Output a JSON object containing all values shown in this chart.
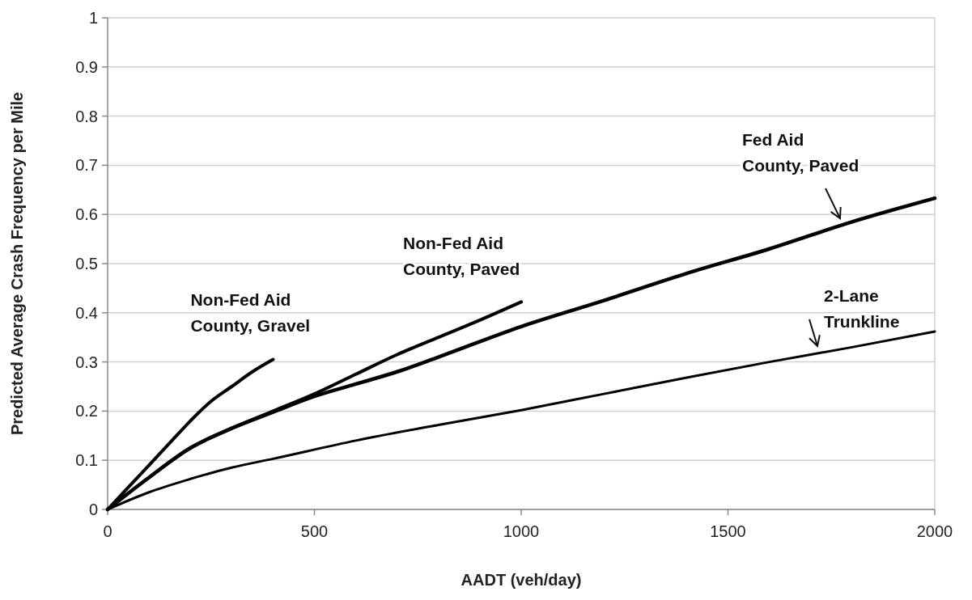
{
  "chart_data": {
    "type": "line",
    "xlabel": "AADT (veh/day)",
    "ylabel": "Predicted Average Crash Frequency per Mile",
    "xlim": [
      0,
      2000
    ],
    "xticks": [
      0,
      500,
      1000,
      1500,
      2000
    ],
    "ylim": [
      0,
      1
    ],
    "yticks": [
      0,
      0.1,
      0.2,
      0.3,
      0.4,
      0.5,
      0.6,
      0.7,
      0.8,
      0.9,
      1
    ],
    "grid": "y",
    "marker": "none",
    "line_style": "solid",
    "series": [
      {
        "name": "Non-Fed Aid\nCounty, Gravel",
        "color": "#000000",
        "x": [
          0,
          50,
          100,
          150,
          200,
          250,
          300,
          350,
          400
        ],
        "values": [
          0,
          0.045,
          0.09,
          0.135,
          0.18,
          0.22,
          0.25,
          0.28,
          0.305
        ]
      },
      {
        "name": "Non-Fed Aid\nCounty, Paved",
        "color": "#000000",
        "x": [
          0,
          100,
          200,
          300,
          400,
          500,
          600,
          700,
          800,
          900,
          1000
        ],
        "values": [
          0,
          0.065,
          0.125,
          0.165,
          0.2,
          0.235,
          0.275,
          0.315,
          0.35,
          0.385,
          0.422
        ]
      },
      {
        "name": "Fed Aid\nCounty, Paved",
        "color": "#000000",
        "x": [
          0,
          100,
          200,
          300,
          400,
          500,
          600,
          700,
          800,
          1000,
          1200,
          1400,
          1600,
          1800,
          2000
        ],
        "values": [
          0,
          0.065,
          0.125,
          0.165,
          0.198,
          0.23,
          0.255,
          0.28,
          0.31,
          0.372,
          0.425,
          0.48,
          0.53,
          0.585,
          0.633
        ]
      },
      {
        "name": "2-Lane\nTrunkline",
        "color": "#000000",
        "x": [
          0,
          100,
          200,
          300,
          400,
          600,
          800,
          1000,
          1200,
          1400,
          1600,
          1800,
          2000
        ],
        "values": [
          0,
          0.035,
          0.062,
          0.085,
          0.103,
          0.14,
          0.172,
          0.202,
          0.235,
          0.268,
          0.3,
          0.33,
          0.362
        ]
      }
    ]
  }
}
